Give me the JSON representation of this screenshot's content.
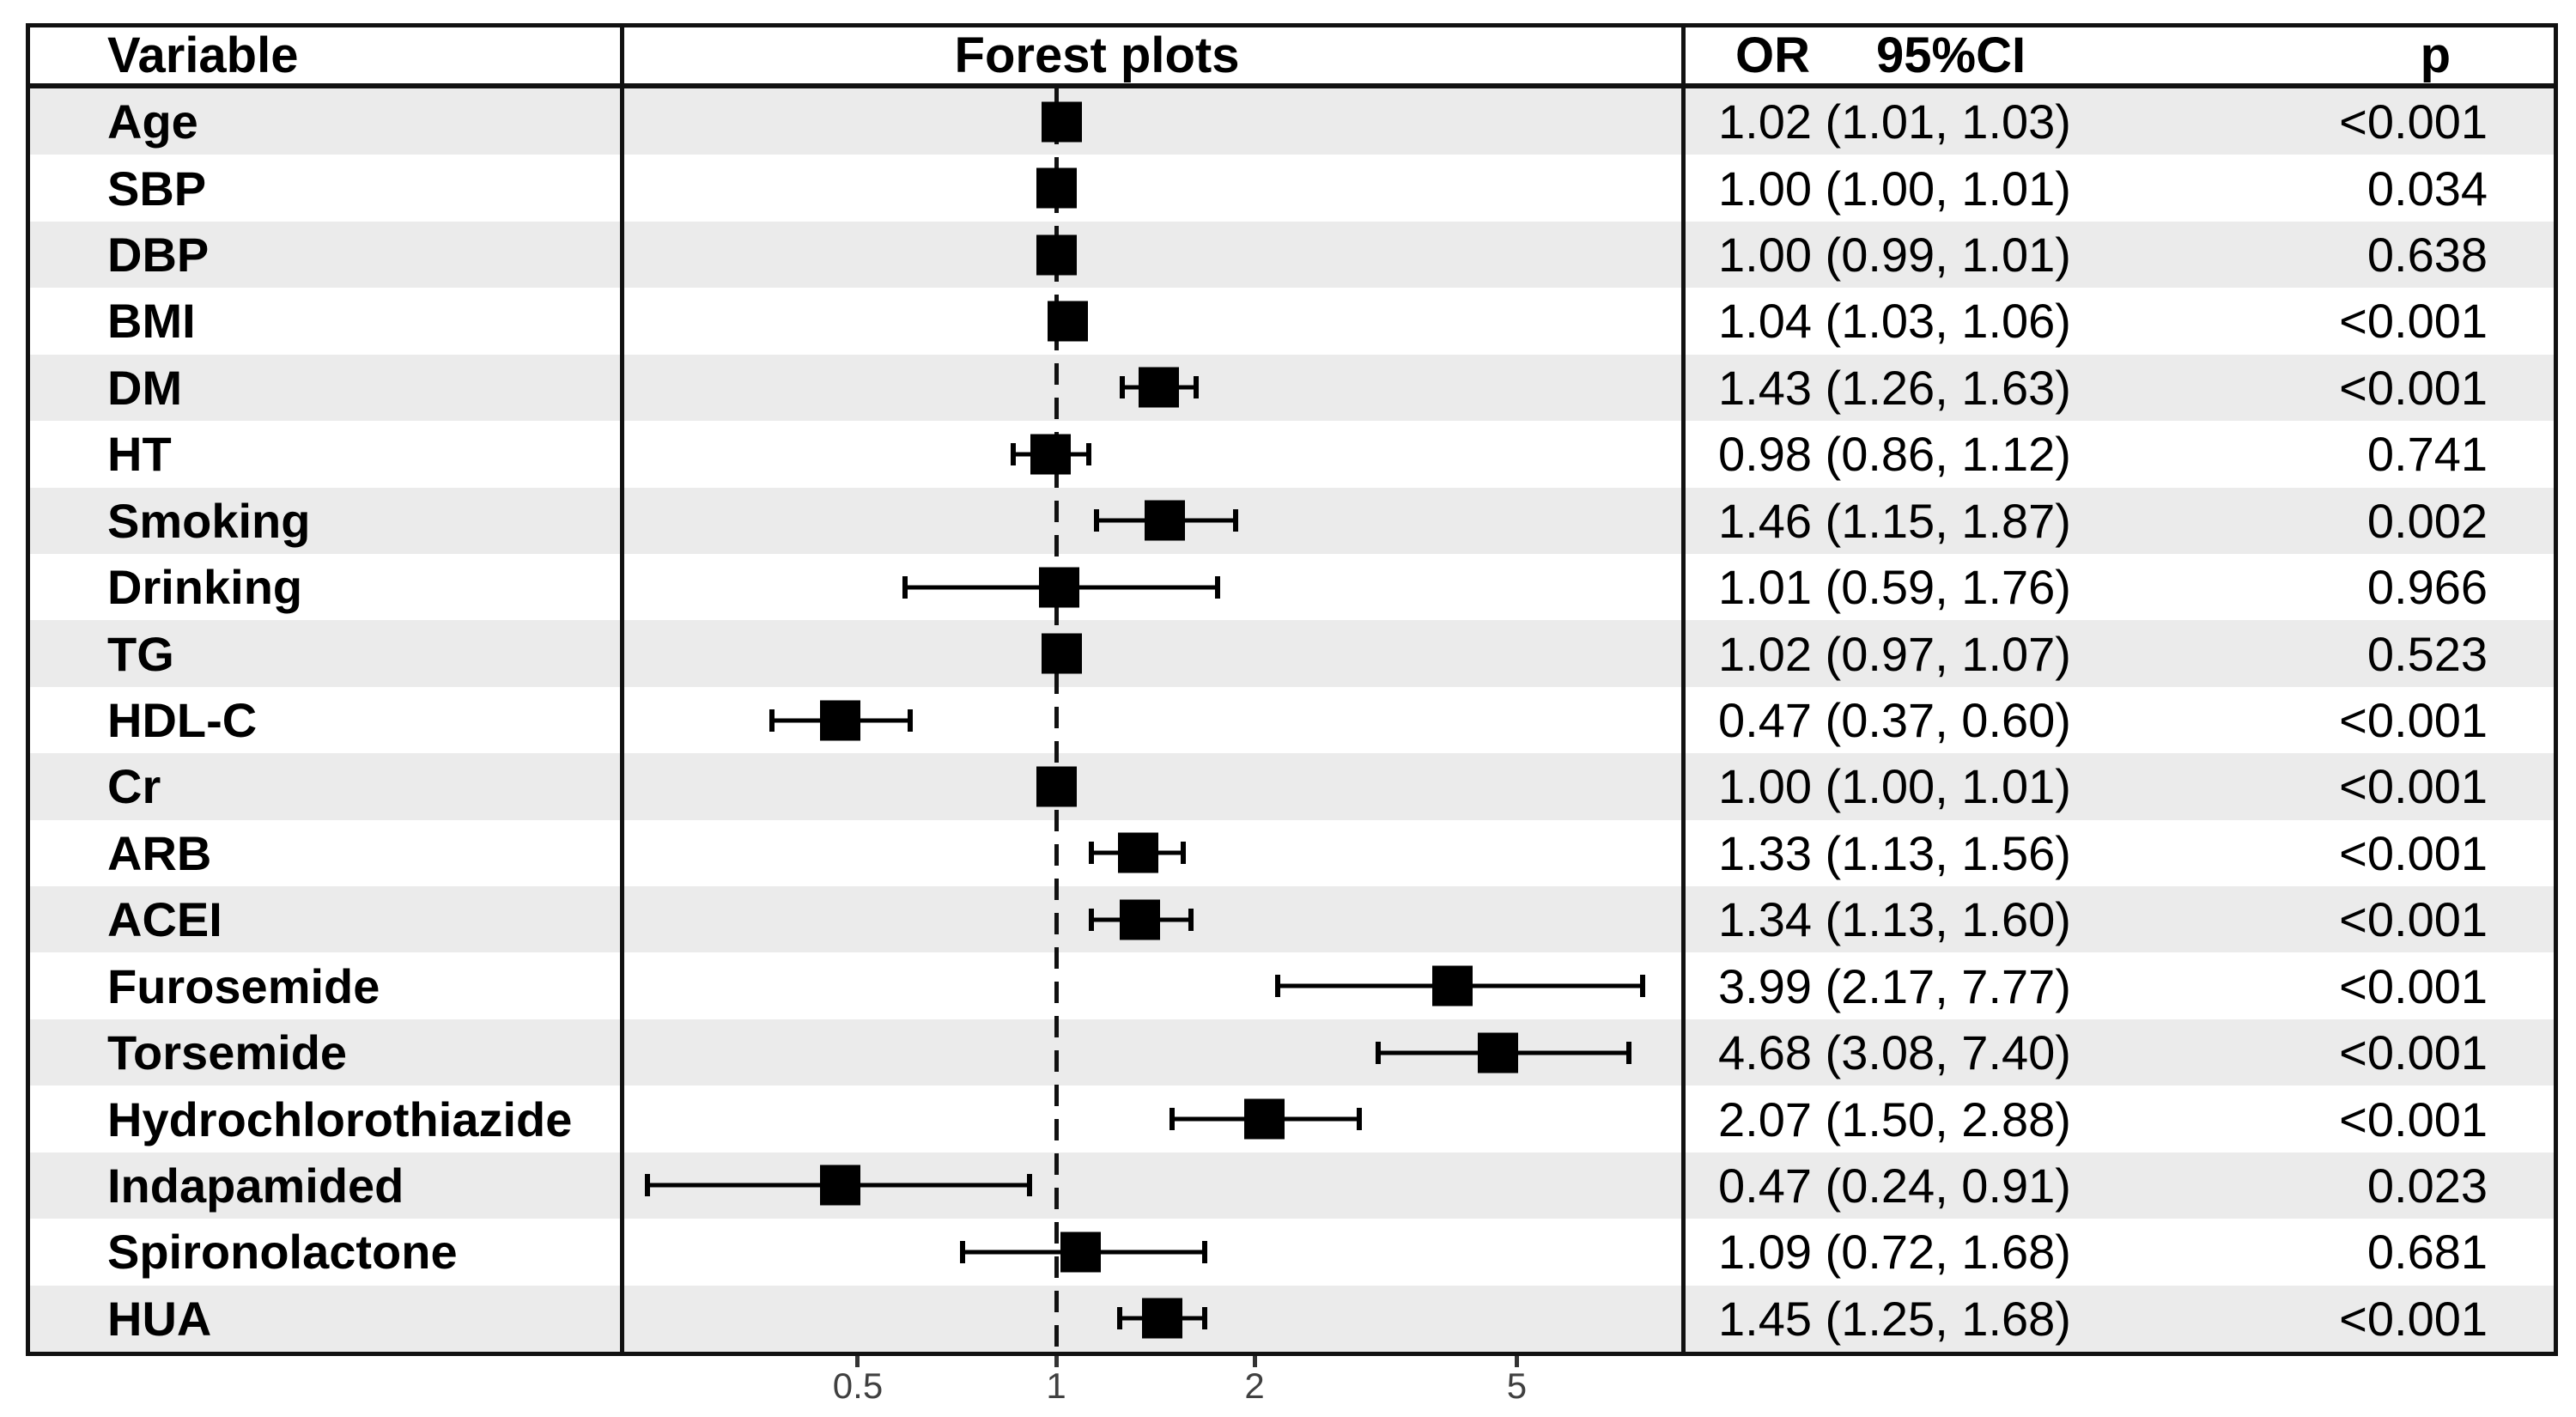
{
  "table": {
    "headers": {
      "variable": "Variable",
      "forest": "Forest plots",
      "or": "OR",
      "ci": "95%CI",
      "p": "p"
    }
  },
  "chart_data": {
    "type": "forest",
    "x_scale": "log",
    "x_ticks": [
      "0.5",
      "1",
      "2",
      "5"
    ],
    "x_tick_values": [
      0.5,
      1,
      2,
      5
    ],
    "reference_line": 1,
    "columns": [
      "Variable",
      "Forest plots",
      "OR 95%CI",
      "p"
    ],
    "rows": [
      {
        "label": "Age",
        "or": 1.02,
        "ci_low": 1.01,
        "ci_high": 1.03,
        "or_ci_text": "1.02 (1.01, 1.03)",
        "p_text": "<0.001"
      },
      {
        "label": "SBP",
        "or": 1.0,
        "ci_low": 1.0,
        "ci_high": 1.01,
        "or_ci_text": "1.00 (1.00, 1.01)",
        "p_text": "0.034"
      },
      {
        "label": "DBP",
        "or": 1.0,
        "ci_low": 0.99,
        "ci_high": 1.01,
        "or_ci_text": "1.00 (0.99, 1.01)",
        "p_text": "0.638"
      },
      {
        "label": "BMI",
        "or": 1.04,
        "ci_low": 1.03,
        "ci_high": 1.06,
        "or_ci_text": "1.04 (1.03, 1.06)",
        "p_text": "<0.001"
      },
      {
        "label": "DM",
        "or": 1.43,
        "ci_low": 1.26,
        "ci_high": 1.63,
        "or_ci_text": "1.43 (1.26, 1.63)",
        "p_text": "<0.001"
      },
      {
        "label": "HT",
        "or": 0.98,
        "ci_low": 0.86,
        "ci_high": 1.12,
        "or_ci_text": "0.98 (0.86, 1.12)",
        "p_text": "0.741"
      },
      {
        "label": "Smoking",
        "or": 1.46,
        "ci_low": 1.15,
        "ci_high": 1.87,
        "or_ci_text": "1.46 (1.15, 1.87)",
        "p_text": "0.002"
      },
      {
        "label": "Drinking",
        "or": 1.01,
        "ci_low": 0.59,
        "ci_high": 1.76,
        "or_ci_text": "1.01 (0.59, 1.76)",
        "p_text": "0.966"
      },
      {
        "label": "TG",
        "or": 1.02,
        "ci_low": 0.97,
        "ci_high": 1.07,
        "or_ci_text": "1.02 (0.97, 1.07)",
        "p_text": "0.523"
      },
      {
        "label": "HDL-C",
        "or": 0.47,
        "ci_low": 0.37,
        "ci_high": 0.6,
        "or_ci_text": "0.47 (0.37, 0.60)",
        "p_text": "<0.001"
      },
      {
        "label": "Cr",
        "or": 1.0,
        "ci_low": 1.0,
        "ci_high": 1.01,
        "or_ci_text": "1.00 (1.00, 1.01)",
        "p_text": "<0.001"
      },
      {
        "label": "ARB",
        "or": 1.33,
        "ci_low": 1.13,
        "ci_high": 1.56,
        "or_ci_text": "1.33 (1.13, 1.56)",
        "p_text": "<0.001"
      },
      {
        "label": "ACEI",
        "or": 1.34,
        "ci_low": 1.13,
        "ci_high": 1.6,
        "or_ci_text": "1.34 (1.13, 1.60)",
        "p_text": "<0.001"
      },
      {
        "label": "Furosemide",
        "or": 3.99,
        "ci_low": 2.17,
        "ci_high": 7.77,
        "or_ci_text": "3.99 (2.17, 7.77)",
        "p_text": "<0.001"
      },
      {
        "label": "Torsemide",
        "or": 4.68,
        "ci_low": 3.08,
        "ci_high": 7.4,
        "or_ci_text": "4.68 (3.08, 7.40)",
        "p_text": "<0.001"
      },
      {
        "label": "Hydrochlorothiazide",
        "or": 2.07,
        "ci_low": 1.5,
        "ci_high": 2.88,
        "or_ci_text": "2.07 (1.50, 2.88)",
        "p_text": "<0.001"
      },
      {
        "label": "Indapamided",
        "or": 0.47,
        "ci_low": 0.24,
        "ci_high": 0.91,
        "or_ci_text": "0.47 (0.24, 0.91)",
        "p_text": "0.023"
      },
      {
        "label": "Spironolactone",
        "or": 1.09,
        "ci_low": 0.72,
        "ci_high": 1.68,
        "or_ci_text": "1.09 (0.72, 1.68)",
        "p_text": "0.681"
      },
      {
        "label": "HUA",
        "or": 1.45,
        "ci_low": 1.25,
        "ci_high": 1.68,
        "or_ci_text": "1.45 (1.25, 1.68)",
        "p_text": "<0.001"
      }
    ],
    "colors": {
      "marker": "#000000",
      "stripe": "#ebebeb",
      "border": "#111111",
      "axis_text": "#404040"
    }
  }
}
